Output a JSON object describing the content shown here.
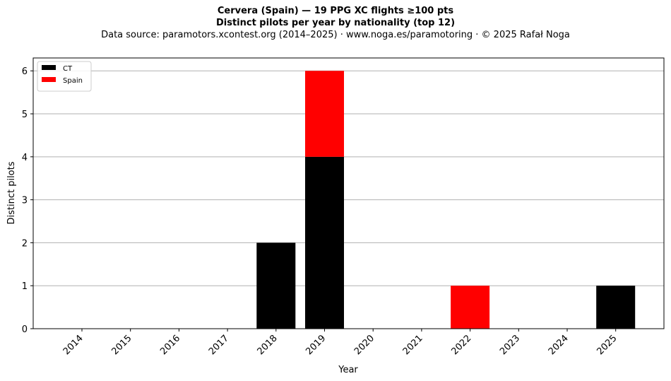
{
  "header": {
    "title_line1": "Cervera (Spain)  —  19 PPG XC flights ≥100 pts",
    "title_line2": "Distinct pilots per year by nationality (top 12)",
    "subtitle": "Data source: paramotors.xcontest.org (2014–2025)  ·  www.noga.es/paramotoring  ·  © 2025 Rafał Noga"
  },
  "chart_data": {
    "type": "bar",
    "stacked": true,
    "title": "Cervera (Spain)  —  19 PPG XC flights ≥100 pts",
    "subtitle": "Distinct pilots per year by nationality (top 12)",
    "xlabel": "Year",
    "ylabel": "Distinct pilots",
    "categories": [
      "2014",
      "2015",
      "2016",
      "2017",
      "2018",
      "2019",
      "2020",
      "2021",
      "2022",
      "2023",
      "2024",
      "2025"
    ],
    "series": [
      {
        "name": "CT",
        "color": "#000000",
        "values": [
          0,
          0,
          0,
          0,
          2,
          4,
          0,
          0,
          0,
          0,
          0,
          1
        ]
      },
      {
        "name": "Spain",
        "color": "#ff0000",
        "values": [
          0,
          0,
          0,
          0,
          0,
          2,
          0,
          0,
          1,
          0,
          0,
          0
        ]
      }
    ],
    "ylim": [
      0,
      6.3
    ],
    "yticks": [
      0,
      1,
      2,
      3,
      4,
      5,
      6
    ],
    "grid": "y",
    "legend": "top-left"
  }
}
